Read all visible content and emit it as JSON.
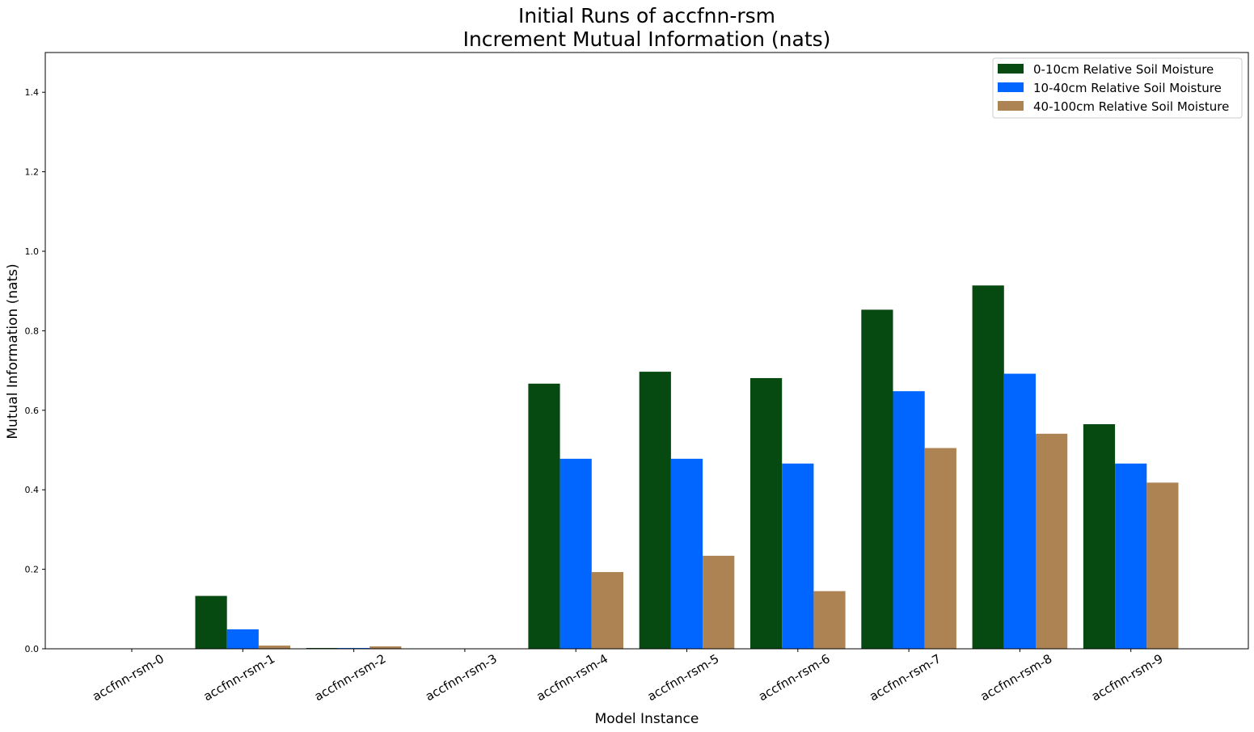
{
  "chart_data": {
    "type": "bar",
    "title": [
      "Initial Runs of accfnn-rsm",
      "Increment Mutual Information (nats)"
    ],
    "xlabel": "Model Instance",
    "ylabel": "Mutual Information (nats)",
    "ylim": [
      0,
      1.5
    ],
    "yticks": [
      "0.0",
      "0.2",
      "0.4",
      "0.6",
      "0.8",
      "1.0",
      "1.2",
      "1.4"
    ],
    "ytick_values": [
      0,
      0.2,
      0.4,
      0.6,
      0.8,
      1.0,
      1.2,
      1.4
    ],
    "categories": [
      "accfnn-rsm-0",
      "accfnn-rsm-1",
      "accfnn-rsm-2",
      "accfnn-rsm-3",
      "accfnn-rsm-4",
      "accfnn-rsm-5",
      "accfnn-rsm-6",
      "accfnn-rsm-7",
      "accfnn-rsm-8",
      "accfnn-rsm-9"
    ],
    "series": [
      {
        "name": "0-10cm Relative Soil Moisture",
        "color": "#074a11",
        "values": [
          0.0,
          0.133,
          0.002,
          0.0,
          0.667,
          0.697,
          0.681,
          0.853,
          0.914,
          0.565
        ]
      },
      {
        "name": "10-40cm Relative Soil Moisture",
        "color": "#0066ff",
        "values": [
          0.0,
          0.049,
          0.002,
          0.0,
          0.478,
          0.478,
          0.466,
          0.648,
          0.692,
          0.466
        ]
      },
      {
        "name": "40-100cm Relative Soil Moisture",
        "color": "#ad8353",
        "values": [
          0.0,
          0.008,
          0.006,
          0.0,
          0.193,
          0.234,
          0.145,
          0.505,
          0.541,
          0.418
        ]
      }
    ],
    "legend_position": "top-right",
    "grid": false
  }
}
